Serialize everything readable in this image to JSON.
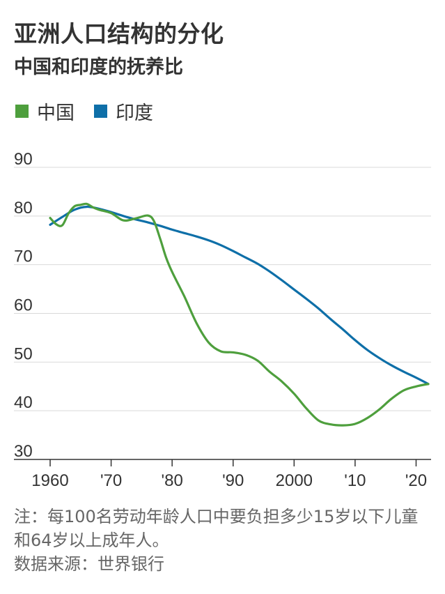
{
  "chart_data": {
    "type": "line",
    "title": "亚洲人口结构的分化",
    "subtitle": "中国和印度的抚养比",
    "xlabel": "",
    "ylabel": "",
    "xlim": [
      1960,
      2022
    ],
    "ylim": [
      30,
      90
    ],
    "y_ticks": [
      90,
      80,
      70,
      60,
      50,
      40,
      30
    ],
    "x_ticks": [
      {
        "value": 1960,
        "label": "1960"
      },
      {
        "value": 1970,
        "label": "'70"
      },
      {
        "value": 1980,
        "label": "'80"
      },
      {
        "value": 1990,
        "label": "'90"
      },
      {
        "value": 2000,
        "label": "2000"
      },
      {
        "value": 2010,
        "label": "'10"
      },
      {
        "value": 2020,
        "label": "'20"
      }
    ],
    "grid": true,
    "legend_position": "top-left",
    "series": [
      {
        "name": "中国",
        "color": "#4e9f3d",
        "x": [
          1960,
          1961,
          1962,
          1963,
          1964,
          1965,
          1966,
          1967,
          1968,
          1970,
          1972,
          1974,
          1976,
          1977,
          1978,
          1979,
          1980,
          1982,
          1984,
          1986,
          1988,
          1990,
          1992,
          1994,
          1996,
          1998,
          2000,
          2002,
          2004,
          2006,
          2008,
          2010,
          2012,
          2014,
          2016,
          2018,
          2020,
          2022
        ],
        "values": [
          79.6,
          78.3,
          78.1,
          80.5,
          82.0,
          82.3,
          82.5,
          81.8,
          81.3,
          80.6,
          79.1,
          79.5,
          80.1,
          79.0,
          75.5,
          71.5,
          68.5,
          63.5,
          58.0,
          54.0,
          52.2,
          52.0,
          51.5,
          50.3,
          48.0,
          46.0,
          43.5,
          40.5,
          38.0,
          37.2,
          37.0,
          37.3,
          38.5,
          40.3,
          42.5,
          44.2,
          45.0,
          45.5
        ]
      },
      {
        "name": "印度",
        "color": "#0e6fa8",
        "x": [
          1960,
          1962,
          1964,
          1966,
          1968,
          1970,
          1972,
          1974,
          1976,
          1978,
          1980,
          1982,
          1984,
          1986,
          1988,
          1990,
          1992,
          1994,
          1996,
          1998,
          2000,
          2002,
          2004,
          2006,
          2008,
          2010,
          2012,
          2014,
          2016,
          2018,
          2020,
          2022
        ],
        "values": [
          78.2,
          79.8,
          81.3,
          81.9,
          81.5,
          80.8,
          80.0,
          79.3,
          78.7,
          78.0,
          77.2,
          76.5,
          75.8,
          75.0,
          74.0,
          72.8,
          71.5,
          70.2,
          68.6,
          66.8,
          64.9,
          63.0,
          61.0,
          58.8,
          56.7,
          54.5,
          52.5,
          50.8,
          49.3,
          48.0,
          46.8,
          45.5
        ]
      }
    ]
  },
  "footnote": "注：每100名劳动年龄人口中要负担多少15岁以下儿童和64岁以上成年人。",
  "source": "数据来源：世界银行",
  "colors": {
    "grid": "#d9d9d9",
    "axis": "#333333"
  }
}
